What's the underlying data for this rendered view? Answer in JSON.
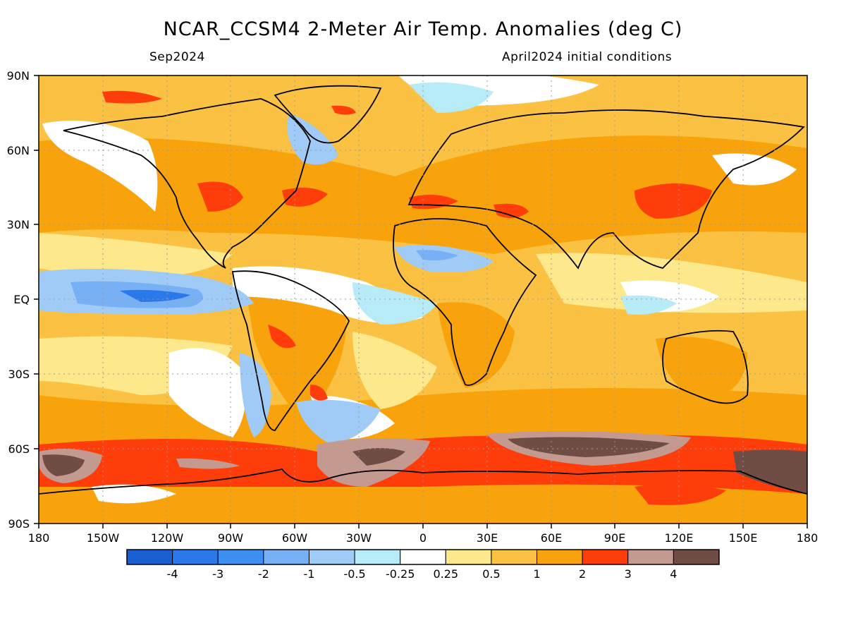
{
  "title": "NCAR_CCSM4 2-Meter Air Temp. Anomalies (deg C)",
  "subtitle_left": "Sep2024",
  "subtitle_right": "April2024 initial conditions",
  "lat_labels": [
    "90N",
    "60N",
    "30N",
    "EQ",
    "30S",
    "60S",
    "90S"
  ],
  "lon_labels": [
    "180",
    "150W",
    "120W",
    "90W",
    "60W",
    "30W",
    "0",
    "30E",
    "60E",
    "90E",
    "120E",
    "150E",
    "180"
  ],
  "colorbar": {
    "colors": [
      "#1a5fd1",
      "#2b78eb",
      "#3e8ff2",
      "#77b0f4",
      "#9fcbf6",
      "#b6ebf7",
      "#ffffff",
      "#fde88c",
      "#fbc142",
      "#f8a30b",
      "#ff3d0a",
      "#c49a90",
      "#6f4c44"
    ],
    "labels": [
      "-4",
      "-3",
      "-2",
      "-1",
      "-0.5",
      "-0.25",
      "0.25",
      "0.5",
      "1",
      "2",
      "3",
      "4"
    ]
  }
}
